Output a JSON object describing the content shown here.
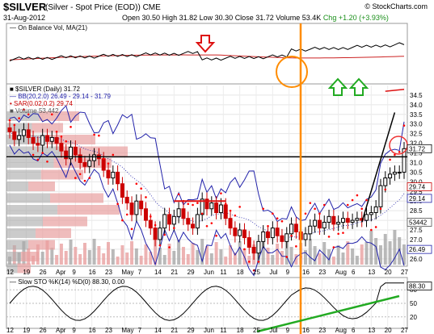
{
  "header": {
    "symbol": "$SILVER",
    "description": "(Silver - Spot Price (EOD))",
    "exchange": "CME",
    "date": "31-Aug-2012",
    "copyright": "© StockCharts.com",
    "quote": {
      "open": "Open 30.50",
      "high": "High 31.82",
      "low": "Low 30.30",
      "close": "Close 31.72",
      "volume": "Volume 53.4K",
      "chg": "Chg +1.20 (+3.93%)"
    }
  },
  "legends": {
    "obv": "— On Balance Vol, MA(21)",
    "price": "■ $SILVER (Daily) 31.72",
    "bb": "— BB(20,2.0) 26.49 - 29.14 - 31.79",
    "sar": "• SAR(0.02,0.2) 29.74",
    "volume": "■ Volume 53,442",
    "sto": "— Slow STO %K(14) %D(0) 88.30, 0.00"
  },
  "value_tags": [
    "31.72",
    "29.74",
    "29.14",
    "26.49",
    "53442",
    "88.30"
  ],
  "colors": {
    "up": "#000000",
    "down": "#cc0000",
    "ma": "#cc2222",
    "bb": "#2222aa",
    "sar": "#ff0000",
    "vol_bar": "#e8a0a0",
    "vol_gray": "#a8a8a8",
    "orange": "#ff8c00",
    "green": "#22aa22"
  },
  "icons": [
    "red-down-arrow-icon",
    "green-up-arrow-icon",
    "green-up-arrow-icon"
  ],
  "chart_data": {
    "type": "candlestick",
    "title": "$SILVER (Silver - Spot Price (EOD))",
    "x_labels": [
      "12",
      "19",
      "26",
      "Apr",
      "9",
      "16",
      "23",
      "May",
      "7",
      "14",
      "21",
      "29",
      "Jun",
      "11",
      "18",
      "25",
      "Jul",
      "9",
      "16",
      "23",
      "Aug",
      "6",
      "13",
      "20",
      "27"
    ],
    "price_ticks": [
      "34.5",
      "34.0",
      "33.5",
      "33.0",
      "32.5",
      "32.0",
      "31.5",
      "31.0",
      "30.5",
      "30.0",
      "29.5",
      "29.0",
      "28.5",
      "28.0",
      "27.5",
      "27.0",
      "26.5",
      "26.0"
    ],
    "price_range": [
      25.7,
      35.0
    ],
    "price_close_approx": [
      32.6,
      32.2,
      32.4,
      32.7,
      32.3,
      32.0,
      31.9,
      32.4,
      32.1,
      32.3,
      32.0,
      31.6,
      31.2,
      31.8,
      31.4,
      31.0,
      30.8,
      31.1,
      31.4,
      31.2,
      30.6,
      30.2,
      30.5,
      29.9,
      29.2,
      28.9,
      28.3,
      29.0,
      28.6,
      28.0,
      27.6,
      27.0,
      27.6,
      28.3,
      27.8,
      28.2,
      28.6,
      28.1,
      27.8,
      27.6,
      28.3,
      29.1,
      28.6,
      28.9,
      28.4,
      28.8,
      28.1,
      27.6,
      27.2,
      27.5,
      27.1,
      26.6,
      26.3,
      26.9,
      27.4,
      27.1,
      27.6,
      27.2,
      26.9,
      27.3,
      27.8,
      27.4,
      27.0,
      27.3,
      27.7,
      28.0,
      27.6,
      27.9,
      28.2,
      27.8,
      27.9,
      28.1,
      27.9,
      28.0,
      28.1,
      28.0,
      28.3,
      28.4,
      28.7,
      29.8,
      30.2,
      30.4,
      30.5,
      30.5,
      31.72
    ],
    "series": [
      {
        "name": "BB(20,2.0)",
        "values": "upper/middle/lower bands 26.49 - 29.14 - 31.79 (last)"
      },
      {
        "name": "SAR(0.02,0.2)",
        "last": 29.74
      },
      {
        "name": "Volume",
        "last": 53442
      },
      {
        "name": "Slow STO %K(14) %D(0)",
        "last": 88.3,
        "levels": [
          80,
          50,
          20
        ]
      }
    ],
    "sto_ticks": [
      "80",
      "50",
      "20"
    ],
    "annotations": [
      "horizontal support/resistance line near 31.3",
      "red resistance line near 29.0 in June",
      "vertical orange line at mid-July",
      "rising trendline in August",
      "green rising trendline on STO"
    ]
  }
}
